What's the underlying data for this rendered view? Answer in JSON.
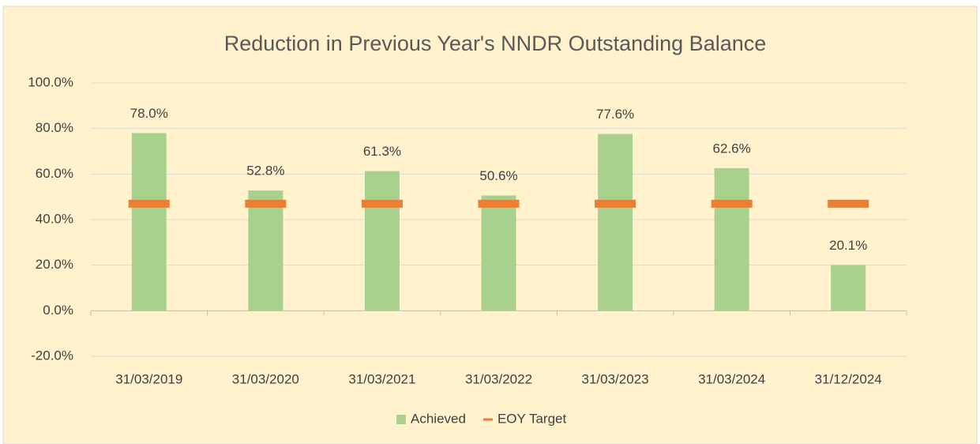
{
  "chart_data": {
    "type": "bar",
    "title": "Reduction in Previous Year's NNDR Outstanding Balance",
    "categories": [
      "31/03/2019",
      "31/03/2020",
      "31/03/2021",
      "31/03/2022",
      "31/03/2023",
      "31/03/2024",
      "31/12/2024"
    ],
    "series": [
      {
        "name": "Achieved",
        "type": "bar",
        "color": "#a9d18e",
        "values": [
          78.0,
          52.8,
          61.3,
          50.6,
          77.6,
          62.6,
          20.1
        ],
        "value_labels": [
          "78.0%",
          "52.8%",
          "61.3%",
          "50.6%",
          "77.6%",
          "62.6%",
          "20.1%"
        ]
      },
      {
        "name": "EOY Target",
        "type": "marker",
        "color": "#ed7d31",
        "values": [
          47,
          47,
          47,
          47,
          47,
          47,
          47
        ]
      }
    ],
    "ylim": [
      -20,
      100
    ],
    "yticks": [
      {
        "value": -20,
        "label": "-20.0%"
      },
      {
        "value": 0,
        "label": "0.0%"
      },
      {
        "value": 20,
        "label": "20.0%"
      },
      {
        "value": 40,
        "label": "40.0%"
      },
      {
        "value": 60,
        "label": "60.0%"
      },
      {
        "value": 80,
        "label": "80.0%"
      },
      {
        "value": 100,
        "label": "100.0%"
      }
    ],
    "grid": true,
    "legend": "bottom"
  }
}
